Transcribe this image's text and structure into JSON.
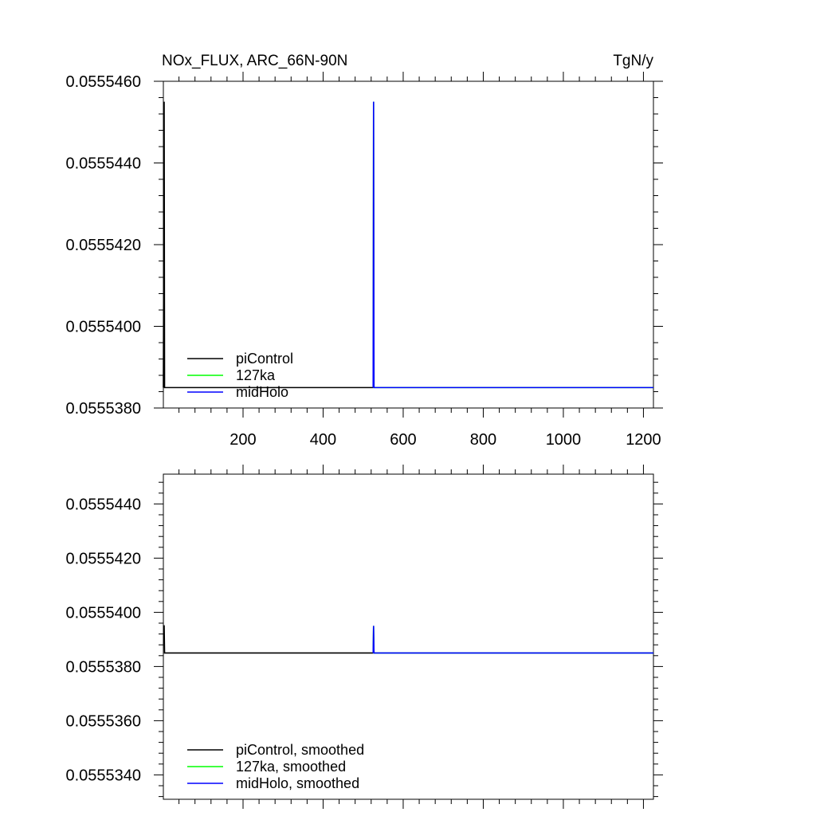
{
  "chart_data": [
    {
      "type": "line",
      "title": "NOx_FLUX, ARC_66N-90N",
      "units": "TgN/y",
      "xlim": [
        1,
        1225
      ],
      "ylim": [
        0.055538,
        0.055546
      ],
      "x_ticks": [
        200,
        400,
        600,
        800,
        1000,
        1200
      ],
      "x_tick_labels": [
        "200",
        "400",
        "600",
        "800",
        "1000",
        "1200"
      ],
      "y_ticks": [
        0.055538,
        0.05554,
        0.055542,
        0.055544,
        0.055546
      ],
      "y_tick_labels": [
        "0.0555380",
        "0.0555400",
        "0.0555420",
        "0.0555440",
        "0.0555460"
      ],
      "legend_position": "bottom-left",
      "series": [
        {
          "name": "piControl",
          "color": "#000000",
          "x": [
            1,
            3,
            4,
            525
          ],
          "y": [
            0.0555385,
            0.0555455,
            0.0555385,
            0.0555385
          ]
        },
        {
          "name": "127ka",
          "color": "#00ff00",
          "x": [
            525,
            526,
            527,
            1225
          ],
          "y": [
            0.0555385,
            0.0555455,
            0.0555385,
            0.0555385
          ]
        },
        {
          "name": "midHolo",
          "color": "#0000ff",
          "x": [
            525,
            526,
            527,
            1225
          ],
          "y": [
            0.0555385,
            0.0555455,
            0.0555385,
            0.0555385
          ]
        }
      ]
    },
    {
      "type": "line",
      "title": "",
      "units": "",
      "xlim": [
        1,
        1225
      ],
      "ylim": [
        0.0555331,
        0.0555451
      ],
      "x_ticks": [
        200,
        400,
        600,
        800,
        1000,
        1200
      ],
      "x_tick_labels": [],
      "y_ticks": [
        0.055534,
        0.055536,
        0.055538,
        0.05554,
        0.055542,
        0.055544
      ],
      "y_tick_labels": [
        "0.0555340",
        "0.0555360",
        "0.0555380",
        "0.0555400",
        "0.0555420",
        "0.0555440"
      ],
      "legend_position": "bottom-left",
      "series": [
        {
          "name": "piControl, smoothed",
          "color": "#000000",
          "x": [
            1,
            3,
            4,
            525
          ],
          "y": [
            0.0555395,
            0.0555395,
            0.0555385,
            0.0555385
          ]
        },
        {
          "name": "127ka, smoothed",
          "color": "#00ff00",
          "x": [
            525,
            526,
            527,
            1225
          ],
          "y": [
            0.0555385,
            0.0555395,
            0.0555385,
            0.0555385
          ]
        },
        {
          "name": "midHolo, smoothed",
          "color": "#0000ff",
          "x": [
            525,
            526,
            527,
            1225
          ],
          "y": [
            0.0555385,
            0.0555395,
            0.0555385,
            0.0555385
          ]
        }
      ]
    }
  ]
}
